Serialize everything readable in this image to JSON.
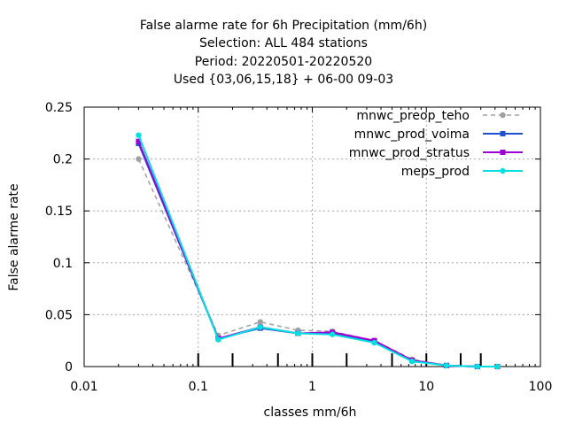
{
  "chart_data": {
    "type": "line",
    "title": [
      "False alarme rate  for 6h Precipitation (mm/6h)",
      "Selection: ALL    484 stations",
      "Period: 20220501-20220520",
      "Used {03,06,15,18} + 06-00 09-03"
    ],
    "xlabel": "classes mm/6h",
    "ylabel": "False alarme rate",
    "xscale": "log",
    "xlim": [
      0.01,
      100
    ],
    "ylim": [
      0,
      0.25
    ],
    "xticks": [
      {
        "value": 0.01,
        "label": "0.01"
      },
      {
        "value": 0.1,
        "label": "0.1"
      },
      {
        "value": 1,
        "label": "1"
      },
      {
        "value": 10,
        "label": "10"
      },
      {
        "value": 100,
        "label": "100"
      }
    ],
    "yticks": [
      {
        "value": 0,
        "label": "0"
      },
      {
        "value": 0.05,
        "label": "0.05"
      },
      {
        "value": 0.1,
        "label": "0.1"
      },
      {
        "value": 0.15,
        "label": "0.15"
      },
      {
        "value": 0.2,
        "label": "0.2"
      },
      {
        "value": 0.25,
        "label": "0.25"
      }
    ],
    "threshold_marks": [
      0.1,
      0.2,
      0.5,
      1,
      2,
      5,
      10,
      20,
      30
    ],
    "grid": true,
    "legend_position": "top-right",
    "x": [
      0.03,
      0.15,
      0.35,
      0.75,
      1.5,
      3.5,
      7.5,
      15,
      28,
      42
    ],
    "series": [
      {
        "name": "mnwc_preop_teho",
        "color": "#a0a0a0",
        "dash": true,
        "marker": "circle",
        "values": [
          0.2,
          0.03,
          0.043,
          0.035,
          0.034,
          0.025,
          0.007,
          0.001,
          0.0,
          0.0
        ]
      },
      {
        "name": "mnwc_prod_voima",
        "color": "#2050d0",
        "dash": false,
        "marker": "square",
        "values": [
          0.215,
          0.027,
          0.037,
          0.032,
          0.032,
          0.024,
          0.006,
          0.001,
          0.0,
          0.0
        ]
      },
      {
        "name": "mnwc_prod_stratus",
        "color": "#a000d8",
        "dash": false,
        "marker": "square",
        "values": [
          0.217,
          0.027,
          0.038,
          0.032,
          0.033,
          0.025,
          0.006,
          0.001,
          0.0,
          0.0
        ]
      },
      {
        "name": "meps_prod",
        "color": "#00e0e0",
        "dash": false,
        "marker": "circle",
        "values": [
          0.223,
          0.026,
          0.038,
          0.032,
          0.031,
          0.023,
          0.005,
          0.001,
          0.0,
          0.0
        ]
      }
    ]
  }
}
